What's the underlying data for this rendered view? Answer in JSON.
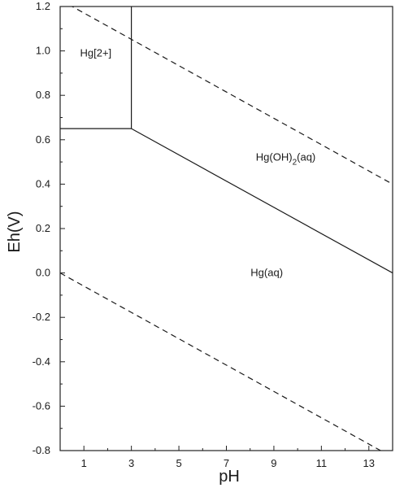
{
  "chart_data": {
    "type": "line",
    "xlabel": "pH",
    "ylabel": "Eh(V)",
    "xlim": [
      0,
      14
    ],
    "ylim": [
      -0.8,
      1.2
    ],
    "x_ticks": [
      1,
      3,
      5,
      7,
      9,
      11,
      13
    ],
    "x_tick_labels": [
      "1",
      "3",
      "5",
      "7",
      "9",
      "11",
      "13"
    ],
    "y_ticks": [
      -0.8,
      -0.6,
      -0.4,
      -0.2,
      0.0,
      0.2,
      0.4,
      0.6,
      0.8,
      1.0,
      1.2
    ],
    "y_tick_labels": [
      "-0.8",
      "-0.6",
      "-0.4",
      "-0.2",
      "0.0",
      "0.2",
      "0.4",
      "0.6",
      "0.8",
      "1.0",
      "1.2"
    ],
    "grid": false,
    "series": [
      {
        "style": "solid",
        "x": [
          0,
          3
        ],
        "y": [
          0.65,
          0.65
        ]
      },
      {
        "style": "solid",
        "x": [
          3,
          3
        ],
        "y": [
          0.65,
          1.2
        ]
      },
      {
        "style": "solid",
        "x": [
          3,
          14
        ],
        "y": [
          0.65,
          0.0
        ]
      },
      {
        "style": "dashed",
        "x": [
          0,
          14
        ],
        "y": [
          1.23,
          0.4
        ]
      },
      {
        "style": "dashed",
        "x": [
          0,
          14
        ],
        "y": [
          0.0,
          -0.83
        ]
      }
    ],
    "annotations": [
      {
        "text": "Hg[2+]",
        "x": 1.5,
        "y": 0.99
      },
      {
        "text": "Hg(OH)",
        "sub": "2",
        "suffix": "(aq)",
        "x": 9.5,
        "y": 0.52
      },
      {
        "text": "Hg(aq)",
        "x": 8.7,
        "y": 0.0
      }
    ]
  }
}
